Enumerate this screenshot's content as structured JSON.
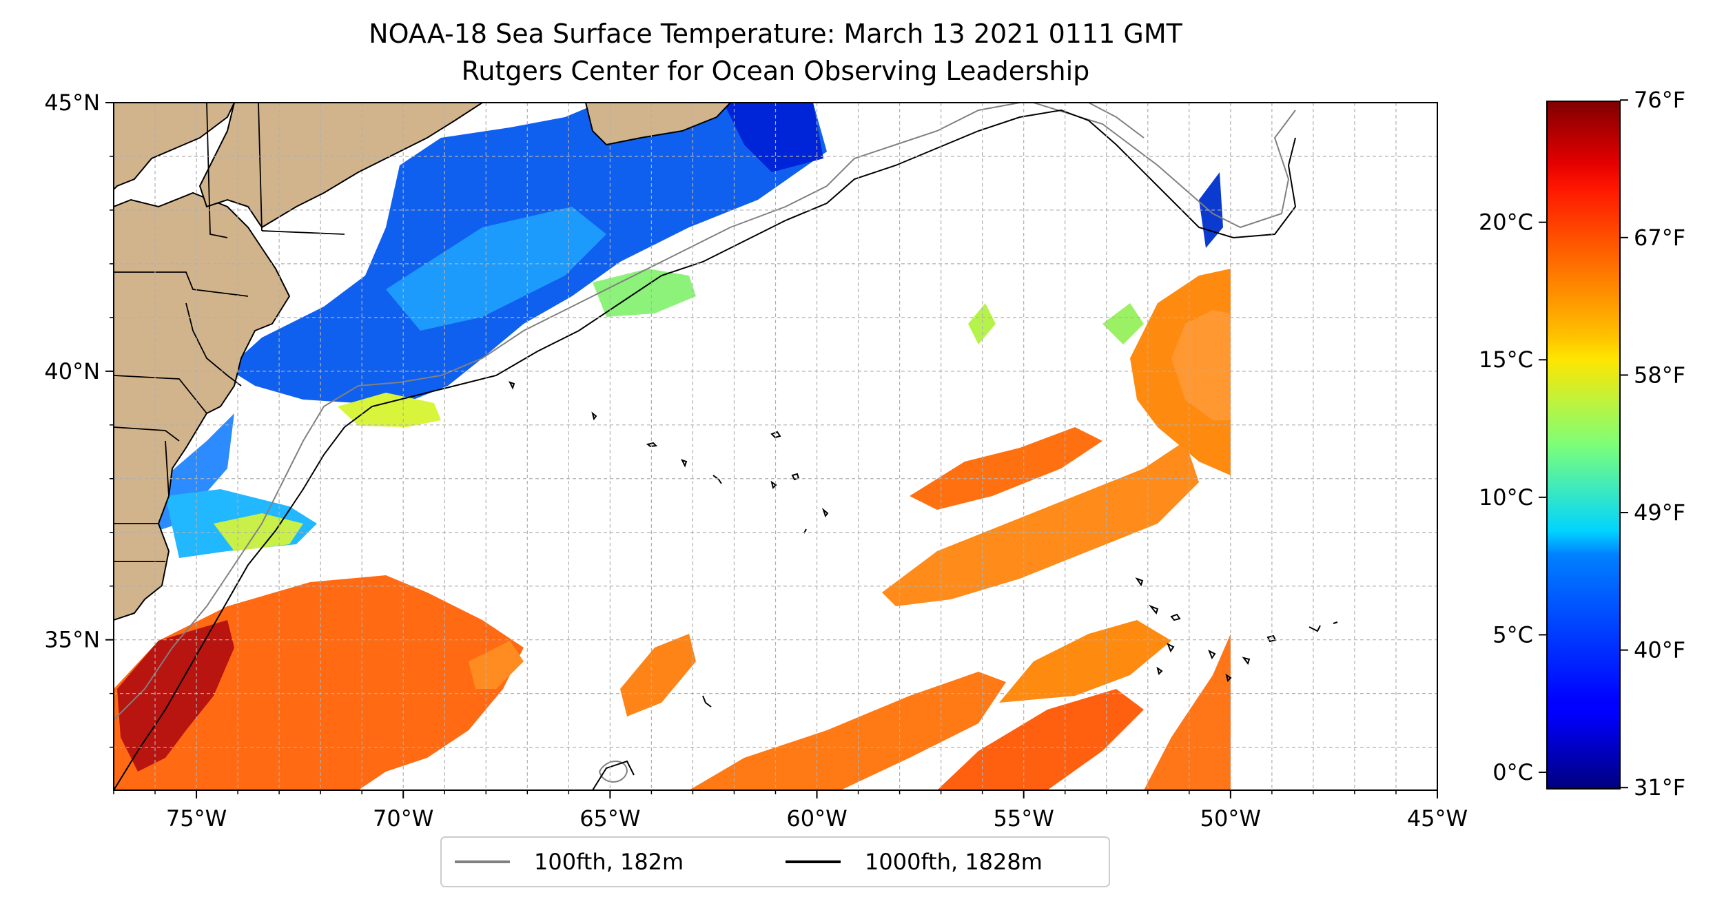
{
  "title": "NOAA-18 Sea Surface Temperature: March 13 2021 0111 GMT",
  "subtitle": "Rutgers Center for Ocean Observing Leadership",
  "map": {
    "extent": {
      "lon": [
        -77,
        -45
      ],
      "lat": [
        32.2,
        45
      ]
    },
    "lon_ticks": [
      {
        "value": -75,
        "label": "75°W"
      },
      {
        "value": -70,
        "label": "70°W"
      },
      {
        "value": -65,
        "label": "65°W"
      },
      {
        "value": -60,
        "label": "60°W"
      },
      {
        "value": -55,
        "label": "55°W"
      },
      {
        "value": -50,
        "label": "50°W"
      },
      {
        "value": -45,
        "label": "45°W"
      }
    ],
    "lat_ticks": [
      {
        "value": 45,
        "label": "45°N"
      },
      {
        "value": 40,
        "label": "40°N"
      },
      {
        "value": 35,
        "label": "35°N"
      }
    ],
    "gridlines": true,
    "land_color": "#d2b48c",
    "lake_color": "#9ec1e9"
  },
  "legend": {
    "placement": "bottom-center",
    "items": [
      {
        "label": "100fth, 182m",
        "color": "#808080"
      },
      {
        "label": "1000fth, 1828m",
        "color": "#000000"
      }
    ]
  },
  "colorbar": {
    "colormap": "jet",
    "range_c": [
      -0.6,
      24.4
    ],
    "celsius_ticks": [
      {
        "value": 0,
        "label": "0°C"
      },
      {
        "value": 5,
        "label": "5°C"
      },
      {
        "value": 10,
        "label": "10°C"
      },
      {
        "value": 15,
        "label": "15°C"
      },
      {
        "value": 20,
        "label": "20°C"
      }
    ],
    "fahrenheit_ticks": [
      {
        "value": 31,
        "label": "31°F"
      },
      {
        "value": 40,
        "label": "40°F"
      },
      {
        "value": 49,
        "label": "49°F"
      },
      {
        "value": 58,
        "label": "58°F"
      },
      {
        "value": 67,
        "label": "67°F"
      },
      {
        "value": 76,
        "label": "76°F"
      }
    ]
  }
}
